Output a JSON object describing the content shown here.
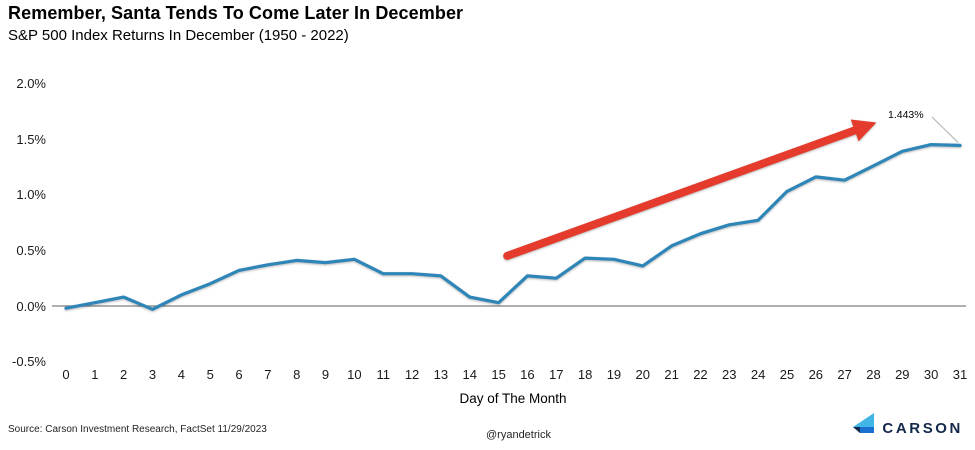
{
  "chart_data": {
    "type": "line",
    "title": "Remember, Santa Tends To Come Later In December",
    "subtitle": "S&P 500 Index Returns In December (1950 - 2022)",
    "xlabel": "Day of The Month",
    "ylabel": "",
    "grid": false,
    "legend": "none",
    "ylim": [
      -0.5,
      2.0
    ],
    "ytick_labels": [
      "2.0%",
      "1.5%",
      "1.0%",
      "0.5%",
      "0.0%",
      "-0.5%"
    ],
    "ytick_values": [
      2.0,
      1.5,
      1.0,
      0.5,
      0.0,
      -0.5
    ],
    "x": [
      0,
      1,
      2,
      3,
      4,
      5,
      6,
      7,
      8,
      9,
      10,
      11,
      12,
      13,
      14,
      15,
      16,
      17,
      18,
      19,
      20,
      21,
      22,
      23,
      24,
      25,
      26,
      27,
      28,
      29,
      30,
      31
    ],
    "values": [
      -0.02,
      0.03,
      0.08,
      -0.03,
      0.1,
      0.2,
      0.32,
      0.37,
      0.41,
      0.39,
      0.42,
      0.29,
      0.29,
      0.27,
      0.08,
      0.03,
      0.27,
      0.25,
      0.43,
      0.42,
      0.36,
      0.54,
      0.65,
      0.73,
      0.77,
      1.03,
      1.16,
      1.13,
      1.26,
      1.39,
      1.45,
      1.443
    ],
    "annotation": {
      "label": "1.443%",
      "day": 31,
      "value": 1.443
    },
    "trend_arrow": {
      "from_day": 15.3,
      "from_pct": 0.45,
      "to_day": 27.8,
      "to_pct": 1.62
    }
  },
  "footer": {
    "source": "Source: Carson Investment Research, FactSet 11/29/2023",
    "handle": "@ryandetrick",
    "logo_text": "CARSON"
  },
  "colors": {
    "line": "#2E86B8",
    "arrow": "#E43B2D",
    "zero_axis": "#7F7F7F",
    "callout": "#AFAFAF",
    "logo_navy": "#13294B",
    "logo_light_blue": "#41B6E6",
    "logo_mid_blue": "#1B6FD0"
  }
}
